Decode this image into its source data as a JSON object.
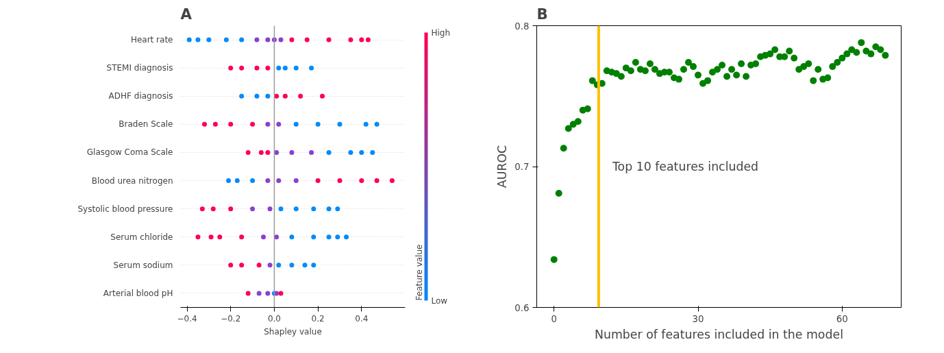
{
  "chart_data": [
    {
      "type": "scatter",
      "title": "A",
      "xlabel": "Shapley value",
      "clabel": "Feature value",
      "orientation": "horizontal",
      "grid": "y",
      "marker": "circle",
      "categories": [
        "Heart rate",
        "STEMI diagnosis",
        "ADHF diagnosis",
        "Braden Scale",
        "Glasgow Coma Scale",
        "Blood urea nitrogen",
        "Systolic blood pressure",
        "Serum chloride",
        "Serum sodium",
        "Arterial blood pH"
      ],
      "xlim": [
        -0.43,
        0.6
      ],
      "xticks": [
        {
          "value": -0.4,
          "label": "−0.4"
        },
        {
          "value": -0.2,
          "label": "−0.2"
        },
        {
          "value": 0,
          "label": "0.0"
        },
        0.2,
        0.4
      ],
      "clim": [
        0,
        1
      ],
      "cticks": [
        {
          "value": 0,
          "label": "Low"
        },
        {
          "value": 1,
          "label": "High"
        }
      ],
      "ref_lines": [
        {
          "axis": "x",
          "value": 0,
          "color": "#999999"
        }
      ],
      "series": [
        {
          "values": [
            -0.39,
            -0.2,
            -0.15,
            -0.32,
            -0.12,
            -0.21,
            -0.33,
            -0.35,
            -0.2,
            -0.12
          ],
          "colors": [
            "#008bfb",
            "#ff0052",
            "#008bfb",
            "#ff0052",
            "#ff0052",
            "#008bfb",
            "#ff0052",
            "#ff0052",
            "#ff0052",
            "#ff0052"
          ]
        },
        {
          "values": [
            -0.35,
            -0.15,
            -0.08,
            -0.27,
            -0.06,
            -0.17,
            -0.28,
            -0.29,
            -0.15,
            -0.07
          ],
          "colors": [
            "#008bfb",
            "#ff0052",
            "#008bfb",
            "#ff0052",
            "#ff0052",
            "#008bfb",
            "#ff0052",
            "#ff0052",
            "#ff0052",
            "#8a3fd0"
          ]
        },
        {
          "values": [
            -0.3,
            -0.08,
            -0.03,
            -0.2,
            -0.03,
            -0.1,
            -0.2,
            -0.25,
            -0.07,
            -0.03
          ],
          "colors": [
            "#008bfb",
            "#ff0052",
            "#008bfb",
            "#ff0052",
            "#ff0052",
            "#008bfb",
            "#ff0052",
            "#ff0052",
            "#ff0052",
            "#8a3fd0"
          ]
        },
        {
          "values": [
            -0.22,
            -0.03,
            0.01,
            -0.1,
            0.01,
            -0.03,
            -0.1,
            -0.15,
            -0.02,
            0
          ],
          "colors": [
            "#008bfb",
            "#ff0052",
            "#ff0052",
            "#ff0052",
            "#8a3fd0",
            "#8a3fd0",
            "#8a3fd0",
            "#ff0052",
            "#8a3fd0",
            "#008bfb"
          ]
        },
        {
          "values": [
            -0.15,
            0.02,
            0.05,
            -0.03,
            0.08,
            0.02,
            -0.02,
            -0.05,
            0.02,
            0.01
          ],
          "colors": [
            "#008bfb",
            "#008bfb",
            "#ff0052",
            "#8a3fd0",
            "#8a3fd0",
            "#8a3fd0",
            "#8a3fd0",
            "#8a3fd0",
            "#008bfb",
            "#8a3fd0"
          ]
        },
        {
          "values": [
            -0.08,
            0.05,
            0.12,
            0.02,
            0.17,
            0.1,
            0.03,
            0.01,
            0.08,
            0.03
          ],
          "colors": [
            "#8a3fd0",
            "#008bfb",
            "#ff0052",
            "#8a3fd0",
            "#8a3fd0",
            "#8a3fd0",
            "#008bfb",
            "#8a3fd0",
            "#008bfb",
            "#ff0052"
          ]
        },
        {
          "values": [
            -0.03,
            0.1,
            0.22,
            0.1,
            0.25,
            0.2,
            0.1,
            0.08,
            0.14,
            null
          ],
          "colors": [
            "#8a3fd0",
            "#008bfb",
            "#ff0052",
            "#008bfb",
            "#008bfb",
            "#ff0052",
            "#008bfb",
            "#008bfb",
            "#008bfb",
            null
          ]
        },
        {
          "values": [
            0,
            0.17,
            null,
            0.2,
            0.35,
            0.3,
            0.18,
            0.18,
            0.18,
            null
          ],
          "colors": [
            "#8a3fd0",
            "#008bfb",
            null,
            "#008bfb",
            "#008bfb",
            "#ff0052",
            "#008bfb",
            "#008bfb",
            "#008bfb",
            null
          ]
        },
        {
          "values": [
            0.03,
            null,
            null,
            0.3,
            0.4,
            0.4,
            0.25,
            0.25,
            null,
            null
          ],
          "colors": [
            "#8a3fd0",
            null,
            null,
            "#008bfb",
            "#008bfb",
            "#ff0052",
            "#008bfb",
            "#008bfb",
            null,
            null
          ]
        },
        {
          "values": [
            0.08,
            null,
            null,
            0.42,
            0.45,
            0.47,
            0.29,
            0.29,
            null,
            null
          ],
          "colors": [
            "#ff0052",
            null,
            null,
            "#008bfb",
            "#008bfb",
            "#ff0052",
            "#008bfb",
            "#008bfb",
            null,
            null
          ]
        },
        {
          "values": [
            0.15,
            null,
            null,
            0.47,
            null,
            0.54,
            null,
            0.33,
            null,
            null
          ],
          "colors": [
            "#ff0052",
            null,
            null,
            "#008bfb",
            null,
            "#ff0052",
            null,
            "#008bfb",
            null,
            null
          ]
        },
        {
          "values": [
            0.25,
            null,
            null,
            null,
            null,
            null,
            null,
            null,
            null,
            null
          ],
          "colors": [
            "#ff0052",
            null,
            null,
            null,
            null,
            null,
            null,
            null,
            null,
            null
          ]
        },
        {
          "values": [
            0.35,
            null,
            null,
            null,
            null,
            null,
            null,
            null,
            null,
            null
          ],
          "colors": [
            "#ff0052",
            null,
            null,
            null,
            null,
            null,
            null,
            null,
            null,
            null
          ]
        },
        {
          "values": [
            0.4,
            null,
            null,
            null,
            null,
            null,
            null,
            null,
            null,
            null
          ],
          "colors": [
            "#ff0052",
            null,
            null,
            null,
            null,
            null,
            null,
            null,
            null,
            null
          ]
        },
        {
          "values": [
            0.43,
            null,
            null,
            null,
            null,
            null,
            null,
            null,
            null,
            null
          ],
          "colors": [
            "#ff0052",
            null,
            null,
            null,
            null,
            null,
            null,
            null,
            null,
            null
          ]
        }
      ]
    },
    {
      "type": "scatter",
      "title": "B",
      "xlabel": "Number of features included in the model",
      "ylabel": "AUROC",
      "marker": "circle",
      "xlim": [
        -3.6,
        72.3
      ],
      "xticks": [
        0,
        30,
        60
      ],
      "ylim": [
        0.6,
        0.8
      ],
      "yticks": [
        0.6,
        0.7,
        0.8
      ],
      "ref_lines": [
        {
          "axis": "x",
          "value": 9.3,
          "label": "Top 10 features included",
          "color": "#ffc000"
        }
      ],
      "series": [
        {
          "color": "#008000",
          "x": [
            0,
            1,
            2,
            3,
            4,
            5,
            6,
            7,
            8,
            9,
            10,
            11,
            12,
            13,
            14,
            15,
            16,
            17,
            18,
            19,
            20,
            21,
            22,
            23,
            24,
            25,
            26,
            27,
            28,
            29,
            30,
            31,
            32,
            33,
            34,
            35,
            36,
            37,
            38,
            39,
            40,
            41,
            42,
            43,
            44,
            45,
            46,
            47,
            48,
            49,
            50,
            51,
            52,
            53,
            54,
            55,
            56,
            57,
            58,
            59,
            60,
            61,
            62,
            63,
            64,
            65,
            66,
            67,
            68,
            69
          ],
          "values": [
            0.634,
            0.681,
            0.713,
            0.727,
            0.73,
            0.732,
            0.74,
            0.741,
            0.761,
            0.758,
            0.759,
            0.768,
            0.767,
            0.766,
            0.764,
            0.77,
            0.768,
            0.774,
            0.769,
            0.768,
            0.773,
            0.769,
            0.766,
            0.767,
            0.767,
            0.763,
            0.762,
            0.769,
            0.774,
            0.771,
            0.765,
            0.759,
            0.761,
            0.767,
            0.769,
            0.772,
            0.764,
            0.769,
            0.765,
            0.773,
            0.764,
            0.772,
            0.773,
            0.778,
            0.779,
            0.78,
            0.783,
            0.778,
            0.778,
            0.782,
            0.777,
            0.769,
            0.771,
            0.773,
            0.761,
            0.769,
            0.762,
            0.763,
            0.771,
            0.774,
            0.777,
            0.78,
            0.783,
            0.781,
            0.788,
            0.782,
            0.78,
            0.785,
            0.783,
            0.779
          ]
        }
      ]
    }
  ]
}
